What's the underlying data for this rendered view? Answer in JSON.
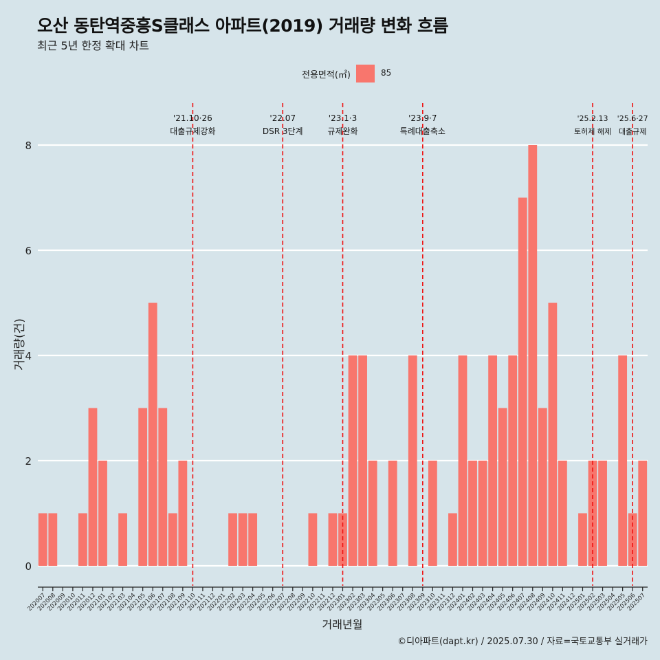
{
  "title": "오산 동탄역중흥S클래스 아파트(2019) 거래량 변화 흐름",
  "subtitle": "최근 5년 한정 확대 차트",
  "caption": "©디아파트(dapt.kr) / 2025.07.30 / 자료=국토교통부 실거래가",
  "colors": {
    "background": "#d6e4ea",
    "bar": "#f8766d",
    "grid": "#ffffff",
    "event_line": "#ee1111"
  },
  "chart_data": {
    "type": "bar",
    "xlabel": "거래년월",
    "ylabel": "거래량(건)",
    "ylim": [
      0,
      8
    ],
    "y_ticks": [
      0,
      2,
      4,
      6,
      8
    ],
    "grid": true,
    "legend": {
      "title": "전용면적(㎡)",
      "position": "top",
      "entries": [
        "85"
      ]
    },
    "categories": [
      "202007",
      "202008",
      "202009",
      "202010",
      "202011",
      "202012",
      "202101",
      "202102",
      "202103",
      "202104",
      "202105",
      "202106",
      "202107",
      "202108",
      "202109",
      "202110",
      "202111",
      "202112",
      "202201",
      "202202",
      "202203",
      "202204",
      "202205",
      "202206",
      "202207",
      "202208",
      "202209",
      "202210",
      "202211",
      "202212",
      "202301",
      "202302",
      "202303",
      "202304",
      "202305",
      "202306",
      "202307",
      "202308",
      "202309",
      "202310",
      "202311",
      "202312",
      "202401",
      "202402",
      "202403",
      "202404",
      "202405",
      "202406",
      "202407",
      "202408",
      "202409",
      "202410",
      "202411",
      "202412",
      "202501",
      "202502",
      "202503",
      "202504",
      "202505",
      "202506",
      "202507"
    ],
    "series": [
      {
        "name": "85",
        "values": [
          1,
          1,
          0,
          0,
          1,
          3,
          2,
          0,
          1,
          0,
          3,
          5,
          3,
          1,
          2,
          0,
          0,
          0,
          0,
          1,
          1,
          1,
          0,
          0,
          0,
          0,
          0,
          1,
          0,
          1,
          1,
          4,
          4,
          2,
          0,
          2,
          0,
          4,
          0,
          2,
          0,
          1,
          4,
          2,
          2,
          4,
          3,
          4,
          7,
          8,
          3,
          5,
          2,
          0,
          1,
          2,
          2,
          0,
          4,
          1,
          2
        ]
      }
    ],
    "annotations": [
      {
        "date": "'21.10·26",
        "label": "대출규제강화",
        "at": "202110"
      },
      {
        "date": "'22.07",
        "label": "DSR 3단계",
        "at": "202207"
      },
      {
        "date": "'23.1·3",
        "label": "규제완화",
        "at": "202301"
      },
      {
        "date": "'23.9·7",
        "label": "특례대출축소",
        "at": "202309"
      },
      {
        "date": "'25.2.13",
        "label": "토허제 해제",
        "at": "202502"
      },
      {
        "date": "'25.6·27",
        "label": "대출규제",
        "at": "202506"
      }
    ]
  }
}
